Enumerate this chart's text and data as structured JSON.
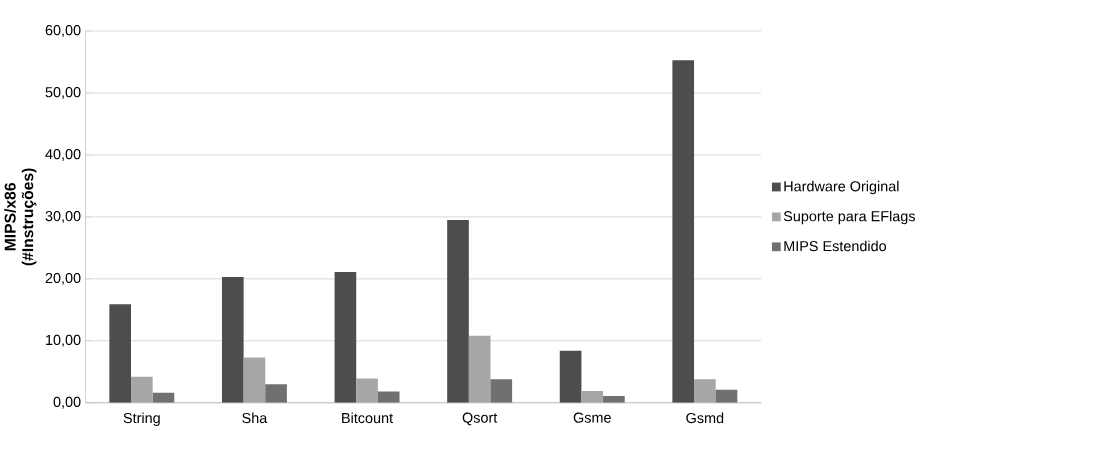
{
  "chart_data": {
    "type": "bar",
    "ylabel": "MIPS/x86\n(#Instruções)",
    "categories": [
      "String",
      "Sha",
      "Bitcount",
      "Qsort",
      "Gsme",
      "Gsmd"
    ],
    "series": [
      {
        "name": "Hardware Original",
        "color": "#4d4d4d",
        "values": [
          15.9,
          20.3,
          21.1,
          29.5,
          8.4,
          55.3
        ]
      },
      {
        "name": "Suporte para EFlags",
        "color": "#a6a6a6",
        "values": [
          4.2,
          7.3,
          3.9,
          10.8,
          1.9,
          3.8
        ]
      },
      {
        "name": "MIPS Estendido",
        "color": "#707070",
        "values": [
          1.6,
          3.0,
          1.8,
          3.8,
          1.1,
          2.1
        ]
      }
    ],
    "ylim": [
      0,
      60
    ],
    "yticks": [
      {
        "value": 0,
        "label": "0,00"
      },
      {
        "value": 10,
        "label": "10,00"
      },
      {
        "value": 20,
        "label": "20,00"
      },
      {
        "value": 30,
        "label": "30,00"
      },
      {
        "value": 40,
        "label": "40,00"
      },
      {
        "value": 50,
        "label": "50,00"
      },
      {
        "value": 60,
        "label": "60,00"
      }
    ],
    "grid": "y",
    "legend": "right"
  }
}
